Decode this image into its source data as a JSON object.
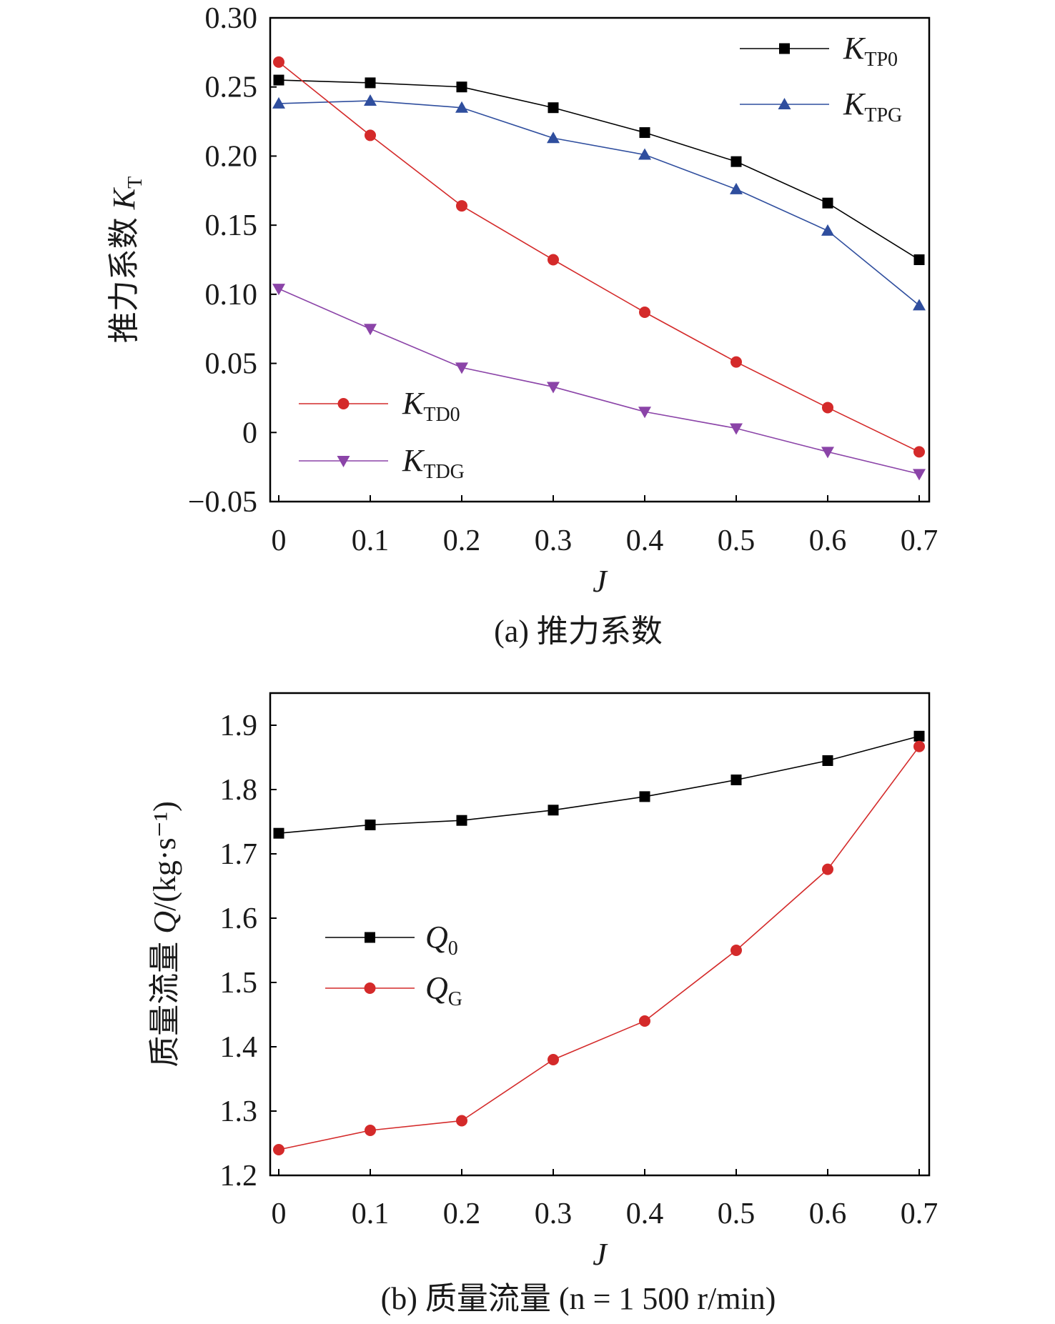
{
  "chart_data": [
    {
      "type": "line",
      "caption": "(a) 推力系数",
      "xlabel": "J",
      "ylabel": {
        "prefix": "推力系数 ",
        "var": "K",
        "sub": "T"
      },
      "xlim": [
        0,
        0.7
      ],
      "ylim": [
        -0.05,
        0.3
      ],
      "xticks": [
        "0",
        "0.1",
        "0.2",
        "0.3",
        "0.4",
        "0.5",
        "0.6",
        "0.7"
      ],
      "yticks": [
        "−0.05",
        "0",
        "0.05",
        "0.10",
        "0.15",
        "0.20",
        "0.25",
        "0.30"
      ],
      "x": [
        0,
        0.1,
        0.2,
        0.3,
        0.4,
        0.5,
        0.6,
        0.7
      ],
      "grid": false,
      "series": [
        {
          "name": "K",
          "sub": "TP0",
          "color": "#000000",
          "marker": "square",
          "values": [
            0.255,
            0.253,
            0.25,
            0.235,
            0.217,
            0.196,
            0.166,
            0.125
          ]
        },
        {
          "name": "K",
          "sub": "TPG",
          "color": "#2f4e9e",
          "marker": "triangle-up",
          "values": [
            0.238,
            0.24,
            0.235,
            0.213,
            0.201,
            0.176,
            0.146,
            0.092
          ]
        },
        {
          "name": "K",
          "sub": "TD0",
          "color": "#d42a2a",
          "marker": "circle",
          "values": [
            0.268,
            0.215,
            0.164,
            0.125,
            0.087,
            0.051,
            0.018,
            -0.014
          ]
        },
        {
          "name": "K",
          "sub": "TDG",
          "color": "#8b44a8",
          "marker": "triangle-down",
          "values": [
            0.104,
            0.075,
            0.047,
            0.033,
            0.015,
            0.003,
            -0.014,
            -0.03
          ]
        }
      ]
    },
    {
      "type": "line",
      "caption": "(b) 质量流量 (n = 1 500 r/min)",
      "xlabel": "J",
      "ylabel": {
        "prefix": "质量流量 ",
        "var": "Q",
        "sub": "",
        "unit": "/(kg·s⁻¹)"
      },
      "xlim": [
        0,
        0.7
      ],
      "ylim": [
        1.2,
        1.95
      ],
      "xticks": [
        "0",
        "0.1",
        "0.2",
        "0.3",
        "0.4",
        "0.5",
        "0.6",
        "0.7"
      ],
      "yticks": [
        "1.2",
        "1.3",
        "1.4",
        "1.5",
        "1.6",
        "1.7",
        "1.8",
        "1.9"
      ],
      "x": [
        0,
        0.1,
        0.2,
        0.3,
        0.4,
        0.5,
        0.6,
        0.7
      ],
      "grid": false,
      "series": [
        {
          "name": "Q",
          "sub": "0",
          "color": "#000000",
          "marker": "square",
          "values": [
            1.732,
            1.745,
            1.752,
            1.768,
            1.789,
            1.815,
            1.845,
            1.883
          ]
        },
        {
          "name": "Q",
          "sub": "G",
          "color": "#d42a2a",
          "marker": "circle",
          "values": [
            1.24,
            1.27,
            1.285,
            1.38,
            1.44,
            1.55,
            1.676,
            1.867
          ]
        }
      ]
    }
  ]
}
